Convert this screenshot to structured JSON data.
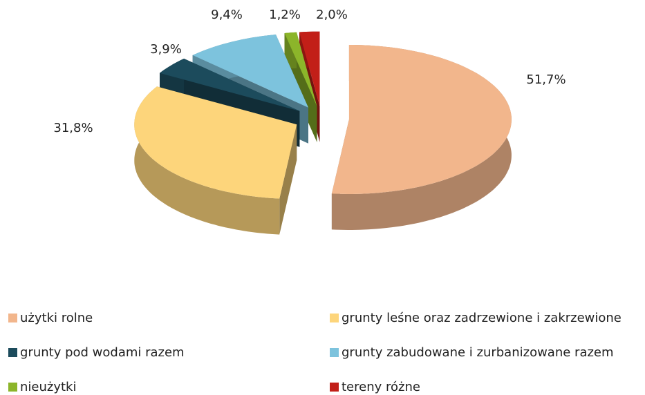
{
  "chart_data": {
    "type": "pie",
    "categories": [
      "użytki rolne",
      "grunty leśne oraz zadrzewione i zakrzewione",
      "grunty pod wodami razem",
      "grunty zabudowane i zurbanizowane razem",
      "nieużytki",
      "tereny różne"
    ],
    "values": [
      51.7,
      31.8,
      3.9,
      9.4,
      1.2,
      2.0
    ],
    "value_labels": [
      "51,7%",
      "31,8%",
      "3,9%",
      "9,4%",
      "1,2%",
      "2,0%"
    ],
    "colors": [
      "#f2b68c",
      "#fdd57b",
      "#1c4b5c",
      "#7dc3dd",
      "#8cb52a",
      "#c21f18"
    ]
  }
}
